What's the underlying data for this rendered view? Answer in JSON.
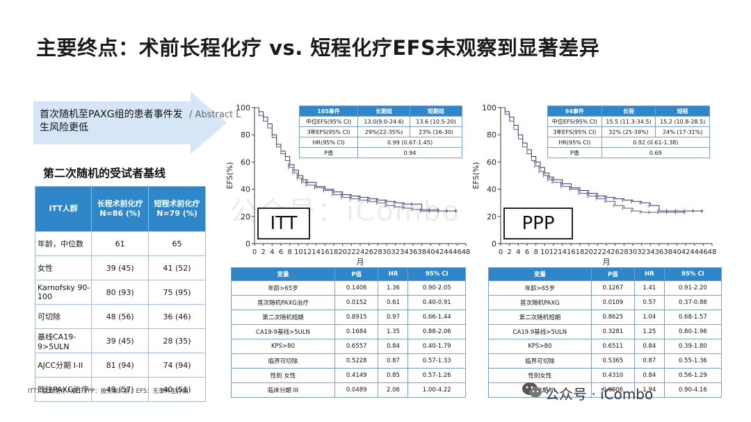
{
  "title": "主要终点：术前长程化疗 vs. 短程化疗EFS未观察到显著差异",
  "arrow_note": "首次随机至PAXG组的患者事件发生风险更低",
  "abstract_fragment": "/ Abstract L",
  "baseline": {
    "title": "第二次随机的受试者基线",
    "headers": [
      "ITT人群",
      "长程术前化疗 N=86 (%)",
      "短程术前化疗 N=79 (%)"
    ],
    "rows": [
      [
        "年龄，中位数",
        "61",
        "65"
      ],
      [
        "女性",
        "39 (45)",
        "41 (52)"
      ],
      [
        "Karnofsky 90-100",
        "80 (93)",
        "75 (95)"
      ],
      [
        "可切除",
        "48 (56)",
        "36 (46)"
      ],
      [
        "基线CA19-9>5ULN",
        "39 (45)",
        "28 (35)"
      ],
      [
        "AJCC分期 I-II",
        "81 (94)",
        "74 (94)"
      ],
      [
        "既往PAXG治疗",
        "49 (57)",
        "40 (51)"
      ]
    ]
  },
  "footnote": "ITT：意向治疗人群；PPP：按方案人群；EFS：无事件生存期",
  "itt": {
    "label": "ITT",
    "efs_headers": [
      "105事件",
      "长期组",
      "短期组"
    ],
    "efs_rows": [
      [
        "中位EFS(95% CI)",
        "13.0(9.0-24.6)",
        "13.6 (10.5-20)"
      ],
      [
        "3年EFS(95% CI)",
        "29%(22-35%)",
        "23% (16-30)"
      ],
      [
        "HR(95% CI)",
        "0.99 (0.67-1.45)"
      ],
      [
        "P值",
        "0.94"
      ]
    ],
    "cox_headers": [
      "变量",
      "P值",
      "HR",
      "95% CI"
    ],
    "cox_rows": [
      [
        "年龄>65岁",
        "0.1406",
        "1.36",
        "0.90-2.05"
      ],
      [
        "首次随机PAXG治疗",
        "0.0152",
        "0.61",
        "0.40-0.91"
      ],
      [
        "第二次随机短期",
        "0.8915",
        "0.97",
        "0.66-1.44"
      ],
      [
        "CA19-9基线>5ULN",
        "0.1684",
        "1.35",
        "0.88-2.06"
      ],
      [
        "KPS>80",
        "0.6557",
        "0.84",
        "0.40-1.79"
      ],
      [
        "临界可切除",
        "0.5228",
        "0.87",
        "0.57-1.33"
      ],
      [
        "性别 女性",
        "0.4149",
        "0.85",
        "0.57-1.26"
      ],
      [
        "临床分期 III",
        "0.0489",
        "2.06",
        "1.00-4.22"
      ]
    ]
  },
  "ppp": {
    "label": "PPP",
    "efs_headers": [
      "94事件",
      "长程",
      "短程"
    ],
    "efs_rows": [
      [
        "中位EFS(95% CI)",
        "15.5 (11.3-34.5)",
        "15.2 (10.8-28.5)"
      ],
      [
        "3年EFS(95% CI)",
        "32% (25-39%)",
        "24% (17-31%)"
      ],
      [
        "HR(95% CI)",
        "0.92 (0.61-1.38)"
      ],
      [
        "P值",
        "0.69"
      ]
    ],
    "cox_headers": [
      "变量",
      "P值",
      "HR",
      "95% CI"
    ],
    "cox_rows": [
      [
        "年龄>65岁",
        "0.1267",
        "1.41",
        "0.91-2.20"
      ],
      [
        "首次随机PAXG",
        "0.0109",
        "0.57",
        "0.37-0.88"
      ],
      [
        "第二次随机短期",
        "0.8625",
        "1.04",
        "0.68-1.57"
      ],
      [
        "CA19.9基线>5ULN",
        "0.3281",
        "1.25",
        "0.80-1.96"
      ],
      [
        "KPS>80",
        "0.6511",
        "0.84",
        "0.39-1.80"
      ],
      [
        "临界可切除",
        "0.5365",
        "0.87",
        "0.55-1.36"
      ],
      [
        "性别女性",
        "0.4310",
        "0.84",
        "0.56-1.29"
      ],
      [
        "临床分期 III",
        "0.0906",
        "1.94",
        "0.90-4.16"
      ]
    ]
  },
  "watermark": "公众号：iCombo",
  "brand": "公众号 · iCombo",
  "chart_data": [
    {
      "type": "line",
      "title": "ITT",
      "xlabel": "月",
      "ylabel": "EFS(%)",
      "xlim": [
        0,
        48
      ],
      "ylim": [
        0,
        100
      ],
      "x_ticks": [
        "0",
        "2",
        "4",
        "6",
        "8",
        "10",
        "12",
        "14",
        "16",
        "18",
        "20",
        "22",
        "24",
        "26",
        "28",
        "30",
        "32",
        "34",
        "36",
        "38",
        "40",
        "42",
        "44",
        "46",
        "48"
      ],
      "y_ticks": [
        "0",
        "20",
        "40",
        "60",
        "80",
        "100"
      ],
      "series": [
        {
          "x": [
            0,
            1,
            2,
            3,
            4,
            5,
            6,
            7,
            8,
            9,
            10,
            11,
            12,
            14,
            16,
            18,
            20,
            22,
            24,
            26,
            28,
            30,
            32,
            34,
            36,
            38,
            40,
            42,
            44,
            46
          ],
          "y": [
            100,
            97,
            93,
            88,
            80,
            73,
            68,
            64,
            58,
            54,
            50,
            47,
            45,
            42,
            40,
            38,
            36,
            35,
            34,
            33,
            32,
            31,
            30,
            29,
            29,
            24,
            24,
            24,
            24,
            24
          ]
        },
        {
          "x": [
            0,
            1,
            2,
            3,
            4,
            5,
            6,
            7,
            8,
            9,
            10,
            11,
            12,
            14,
            16,
            18,
            20,
            22,
            24,
            26,
            28,
            30,
            32,
            34,
            36,
            38,
            40,
            42
          ],
          "y": [
            100,
            94,
            90,
            85,
            78,
            71,
            66,
            61,
            56,
            52,
            48,
            45,
            43,
            41,
            39,
            36,
            34,
            33,
            32,
            31,
            30,
            28,
            27,
            26,
            25,
            25,
            25,
            25
          ]
        }
      ]
    },
    {
      "type": "line",
      "title": "PPP",
      "xlabel": "月",
      "ylabel": "EFS(%)",
      "xlim": [
        0,
        48
      ],
      "ylim": [
        0,
        100
      ],
      "x_ticks": [
        "0",
        "2",
        "4",
        "6",
        "8",
        "10",
        "12",
        "14",
        "16",
        "18",
        "20",
        "22",
        "24",
        "26",
        "28",
        "30",
        "32",
        "34",
        "36",
        "38",
        "40",
        "42",
        "44",
        "46",
        "48"
      ],
      "y_ticks": [
        "0",
        "20",
        "40",
        "60",
        "80",
        "100"
      ],
      "series": [
        {
          "x": [
            0,
            1,
            2,
            3,
            4,
            5,
            6,
            7,
            8,
            9,
            10,
            11,
            12,
            14,
            16,
            18,
            20,
            22,
            24,
            26,
            28,
            30,
            32,
            34,
            36,
            38,
            40,
            42,
            44,
            46
          ],
          "y": [
            100,
            97,
            93,
            87,
            80,
            74,
            69,
            64,
            60,
            56,
            52,
            49,
            47,
            44,
            41,
            39,
            37,
            35,
            34,
            33,
            32,
            31,
            30,
            28,
            24,
            24,
            24,
            24,
            24,
            24
          ]
        },
        {
          "x": [
            0,
            1,
            2,
            3,
            4,
            5,
            6,
            7,
            8,
            9,
            10,
            11,
            12,
            14,
            16,
            18,
            20,
            22,
            24,
            26,
            28,
            30,
            32,
            34,
            36,
            38,
            40,
            42
          ],
          "y": [
            100,
            95,
            90,
            84,
            77,
            71,
            66,
            61,
            57,
            53,
            50,
            47,
            45,
            42,
            40,
            37,
            35,
            33,
            31,
            28,
            26,
            24,
            23,
            23,
            23,
            23,
            23,
            23
          ]
        }
      ]
    }
  ]
}
